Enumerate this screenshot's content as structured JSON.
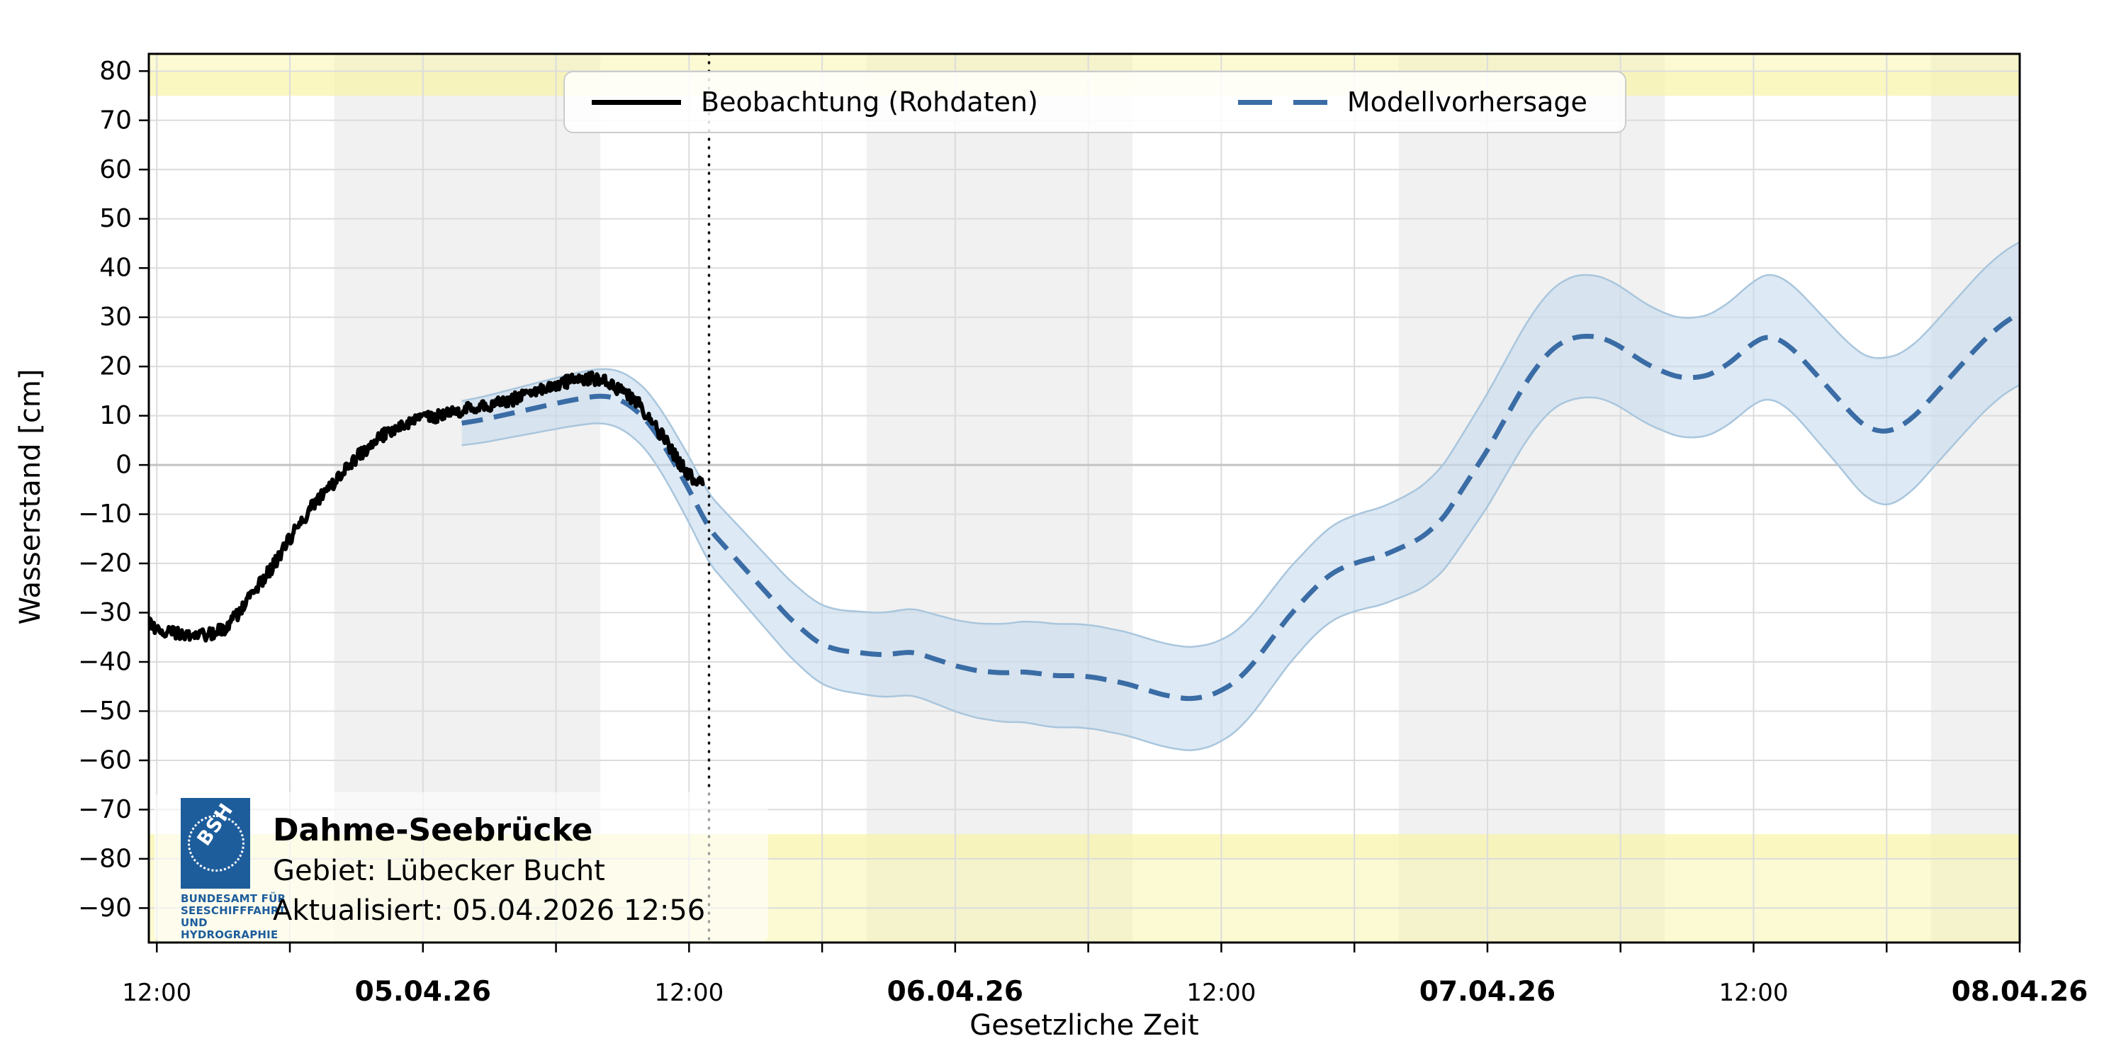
{
  "chart_data": {
    "type": "line",
    "title": "",
    "xlabel": "Gesetzliche Zeit",
    "ylabel": "Wasserstand [cm]",
    "ylim": [
      -97,
      83.5
    ],
    "yticks": [
      -90,
      -80,
      -70,
      -60,
      -50,
      -40,
      -30,
      -20,
      -10,
      0,
      10,
      20,
      30,
      40,
      50,
      60,
      70,
      80
    ],
    "x_domain_hours": [
      -0.36,
      84
    ],
    "x_minor_tick_step_hours": 6,
    "xticks": [
      {
        "h": 0,
        "label": "12:00",
        "bold": false
      },
      {
        "h": 12,
        "label": "05.04.26",
        "bold": true
      },
      {
        "h": 24,
        "label": "12:00",
        "bold": false
      },
      {
        "h": 36,
        "label": "06.04.26",
        "bold": true
      },
      {
        "h": 48,
        "label": "12:00",
        "bold": false
      },
      {
        "h": 60,
        "label": "07.04.26",
        "bold": true
      },
      {
        "h": 72,
        "label": "12:00",
        "bold": false
      },
      {
        "h": 84,
        "label": "08.04.26",
        "bold": true
      }
    ],
    "grid": true,
    "warning_bands": {
      "upper_from": 75,
      "upper_strong_to": 80,
      "lower_from": -75,
      "lower_strong_to": -80,
      "color": "rgb(249,245,168)",
      "base_alpha": 0.5,
      "strong_alpha": 0.45
    },
    "night_bands_hours": [
      [
        8,
        20
      ],
      [
        32,
        44
      ],
      [
        56,
        68
      ],
      [
        80,
        84
      ]
    ],
    "night_band_color": "rgba(150,150,150,0.13)",
    "now_line_hour": 24.9,
    "series": [
      {
        "name": "Beobachtung (Rohdaten)",
        "color": "#000000",
        "style": "solid",
        "width": 6,
        "noise_amplitude": 1.3,
        "points": [
          [
            -0.36,
            -32
          ],
          [
            0,
            -33.5
          ],
          [
            0.3,
            -35
          ],
          [
            0.6,
            -34
          ],
          [
            1,
            -34
          ],
          [
            1.4,
            -34.5
          ],
          [
            1.8,
            -34
          ],
          [
            2.2,
            -34.5
          ],
          [
            2.6,
            -34
          ],
          [
            3,
            -33.5
          ],
          [
            3.4,
            -31.5
          ],
          [
            3.8,
            -29.5
          ],
          [
            4.2,
            -27
          ],
          [
            4.6,
            -24.5
          ],
          [
            5,
            -22
          ],
          [
            5.4,
            -19.5
          ],
          [
            5.8,
            -16.5
          ],
          [
            6.2,
            -13.5
          ],
          [
            6.6,
            -11
          ],
          [
            7,
            -8.5
          ],
          [
            7.4,
            -6.5
          ],
          [
            7.8,
            -4.5
          ],
          [
            8.2,
            -2.5
          ],
          [
            8.6,
            -0.5
          ],
          [
            9,
            1.5
          ],
          [
            9.4,
            3
          ],
          [
            9.8,
            4.5
          ],
          [
            10.2,
            6
          ],
          [
            10.6,
            7
          ],
          [
            11,
            8
          ],
          [
            11.4,
            8.5
          ],
          [
            11.8,
            9.5
          ],
          [
            12.2,
            9.5
          ],
          [
            12.6,
            10
          ],
          [
            13,
            10.5
          ],
          [
            13.4,
            10.5
          ],
          [
            13.8,
            11
          ],
          [
            14.2,
            11.5
          ],
          [
            14.6,
            11.5
          ],
          [
            15,
            12
          ],
          [
            15.4,
            12.5
          ],
          [
            15.8,
            13
          ],
          [
            16.2,
            13.5
          ],
          [
            16.6,
            14
          ],
          [
            17,
            14.5
          ],
          [
            17.4,
            15.5
          ],
          [
            17.8,
            16
          ],
          [
            18.2,
            16.5
          ],
          [
            18.6,
            17
          ],
          [
            19,
            17.5
          ],
          [
            19.4,
            17.5
          ],
          [
            19.8,
            17.5
          ],
          [
            20.2,
            17
          ],
          [
            20.6,
            16
          ],
          [
            21,
            15
          ],
          [
            21.4,
            13.5
          ],
          [
            21.8,
            12
          ],
          [
            22.2,
            9.5
          ],
          [
            22.6,
            7
          ],
          [
            23,
            4.5
          ],
          [
            23.4,
            1.5
          ],
          [
            23.8,
            -1
          ],
          [
            24.1,
            -2.5
          ],
          [
            24.35,
            -4
          ],
          [
            24.5,
            -3.5
          ],
          [
            24.65,
            -5
          ]
        ]
      },
      {
        "name": "Modellvorhersage",
        "color": "#3a6ca5",
        "style": "dashed",
        "width": 7,
        "dash": [
          30,
          16
        ],
        "band_fill": "#c7dbec",
        "band_fill_alpha": 0.6,
        "band_edge": "#a9c6dd",
        "points": [
          [
            13.75,
            8.5
          ],
          [
            14.5,
            9
          ],
          [
            15.5,
            10
          ],
          [
            16.5,
            11
          ],
          [
            17.5,
            12
          ],
          [
            18.5,
            13
          ],
          [
            19.5,
            13.8
          ],
          [
            20,
            14
          ],
          [
            20.5,
            13.8
          ],
          [
            21,
            13
          ],
          [
            21.5,
            11.5
          ],
          [
            22,
            9.5
          ],
          [
            22.5,
            6.5
          ],
          [
            23,
            3
          ],
          [
            23.5,
            -1
          ],
          [
            24,
            -5
          ],
          [
            24.5,
            -9.5
          ],
          [
            25,
            -13.5
          ],
          [
            25.5,
            -16
          ],
          [
            26,
            -18.5
          ],
          [
            26.5,
            -21
          ],
          [
            27,
            -23.5
          ],
          [
            27.5,
            -26
          ],
          [
            28,
            -28.5
          ],
          [
            28.5,
            -31
          ],
          [
            29,
            -33
          ],
          [
            29.5,
            -35
          ],
          [
            30,
            -36.5
          ],
          [
            30.5,
            -37.3
          ],
          [
            31,
            -37.8
          ],
          [
            31.5,
            -38
          ],
          [
            32,
            -38.3
          ],
          [
            32.5,
            -38.5
          ],
          [
            33,
            -38.5
          ],
          [
            33.5,
            -38.2
          ],
          [
            34,
            -38
          ],
          [
            34.5,
            -38.5
          ],
          [
            35,
            -39.3
          ],
          [
            35.5,
            -40
          ],
          [
            36,
            -40.8
          ],
          [
            36.5,
            -41.3
          ],
          [
            37,
            -41.8
          ],
          [
            37.5,
            -42
          ],
          [
            38,
            -42.2
          ],
          [
            38.5,
            -42.2
          ],
          [
            39,
            -42
          ],
          [
            39.5,
            -42.2
          ],
          [
            40,
            -42.5
          ],
          [
            40.5,
            -42.8
          ],
          [
            41,
            -42.8
          ],
          [
            41.5,
            -42.8
          ],
          [
            42,
            -43
          ],
          [
            42.5,
            -43.3
          ],
          [
            43,
            -43.8
          ],
          [
            43.5,
            -44.2
          ],
          [
            44,
            -44.8
          ],
          [
            44.5,
            -45.5
          ],
          [
            45,
            -46.2
          ],
          [
            45.5,
            -46.8
          ],
          [
            46,
            -47.2
          ],
          [
            46.5,
            -47.5
          ],
          [
            47,
            -47.3
          ],
          [
            47.5,
            -46.8
          ],
          [
            48,
            -45.8
          ],
          [
            48.5,
            -44.5
          ],
          [
            49,
            -42.5
          ],
          [
            49.5,
            -40
          ],
          [
            50,
            -37
          ],
          [
            50.5,
            -34
          ],
          [
            51,
            -31
          ],
          [
            51.5,
            -28.5
          ],
          [
            52,
            -26
          ],
          [
            52.5,
            -23.8
          ],
          [
            53,
            -22
          ],
          [
            53.5,
            -20.8
          ],
          [
            54,
            -20
          ],
          [
            54.5,
            -19.3
          ],
          [
            55,
            -18.8
          ],
          [
            55.5,
            -18
          ],
          [
            56,
            -17
          ],
          [
            56.5,
            -16
          ],
          [
            57,
            -14.8
          ],
          [
            57.5,
            -13
          ],
          [
            58,
            -10.8
          ],
          [
            58.5,
            -7.5
          ],
          [
            59,
            -4
          ],
          [
            59.5,
            -0.5
          ],
          [
            60,
            3
          ],
          [
            60.5,
            7
          ],
          [
            61,
            11
          ],
          [
            61.5,
            15
          ],
          [
            62,
            18.5
          ],
          [
            62.5,
            21.5
          ],
          [
            63,
            23.8
          ],
          [
            63.5,
            25.2
          ],
          [
            64,
            26
          ],
          [
            64.5,
            26.2
          ],
          [
            65,
            26
          ],
          [
            65.5,
            25.2
          ],
          [
            66,
            24
          ],
          [
            66.5,
            22.5
          ],
          [
            67,
            21
          ],
          [
            67.5,
            19.8
          ],
          [
            68,
            18.8
          ],
          [
            68.5,
            18
          ],
          [
            69,
            17.7
          ],
          [
            69.5,
            17.8
          ],
          [
            70,
            18.3
          ],
          [
            70.5,
            19.5
          ],
          [
            71,
            21
          ],
          [
            71.5,
            23
          ],
          [
            72,
            24.8
          ],
          [
            72.5,
            26
          ],
          [
            73,
            25.8
          ],
          [
            73.5,
            24.5
          ],
          [
            74,
            22.5
          ],
          [
            74.5,
            20
          ],
          [
            75,
            17.5
          ],
          [
            75.5,
            15
          ],
          [
            76,
            12.5
          ],
          [
            76.5,
            10
          ],
          [
            77,
            8
          ],
          [
            77.5,
            7
          ],
          [
            78,
            6.8
          ],
          [
            78.5,
            7.5
          ],
          [
            79,
            9
          ],
          [
            79.5,
            11
          ],
          [
            80,
            13.5
          ],
          [
            80.5,
            16
          ],
          [
            81,
            18.5
          ],
          [
            81.5,
            21
          ],
          [
            82,
            23.5
          ],
          [
            82.5,
            25.8
          ],
          [
            83,
            27.8
          ],
          [
            83.5,
            29.5
          ],
          [
            84,
            30.8
          ]
        ],
        "band_halfwidth": [
          [
            13.75,
            4.5
          ],
          [
            20,
            5.5
          ],
          [
            25,
            7
          ],
          [
            30,
            8
          ],
          [
            35,
            9
          ],
          [
            40,
            10.5
          ],
          [
            47,
            10.5
          ],
          [
            52,
            9.5
          ],
          [
            56,
            10
          ],
          [
            60,
            11.5
          ],
          [
            64,
            12.5
          ],
          [
            68,
            12
          ],
          [
            72,
            12.5
          ],
          [
            76,
            13.5
          ],
          [
            78,
            15
          ],
          [
            80,
            14.5
          ],
          [
            84,
            14.5
          ]
        ]
      }
    ]
  },
  "legend": {
    "items": [
      {
        "label": "Beobachtung (Rohdaten)"
      },
      {
        "label": "Modellvorhersage"
      }
    ]
  },
  "station": {
    "name": "Dahme-Seebrücke",
    "area_label": "Gebiet: Lübecker Bucht",
    "updated_label": "Aktualisiert: 05.04.2026 12:56"
  },
  "logo": {
    "mark": "BSH",
    "color": "#1d5d9c",
    "lines": [
      "BUNDESAMT FÜR",
      "SEESCHIFFFAHRT",
      "UND",
      "HYDROGRAPHIE"
    ]
  },
  "axes_text": {
    "xlabel": "Gesetzliche Zeit",
    "ylabel": "Wasserstand [cm]"
  }
}
